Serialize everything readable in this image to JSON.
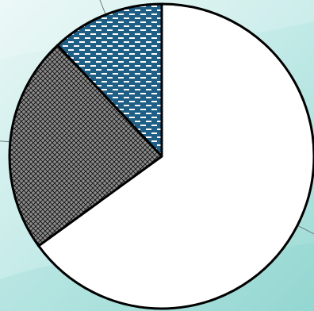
{
  "chart_data": {
    "type": "pie",
    "start_angle_deg": 0,
    "direction": "clockwise",
    "slices": [
      {
        "value": 65,
        "fill_pattern": "white",
        "color": "#ffffff"
      },
      {
        "value": 23,
        "fill_pattern": "crosshatch",
        "color": "#8c8c8c"
      },
      {
        "value": 12,
        "fill_pattern": "dashes",
        "color": "#1f5f86"
      }
    ],
    "leader_lines": true,
    "legend": "none"
  },
  "background": {
    "gradient": [
      "#e8f7f5",
      "#bfe9e6",
      "#9ad9d4"
    ]
  }
}
